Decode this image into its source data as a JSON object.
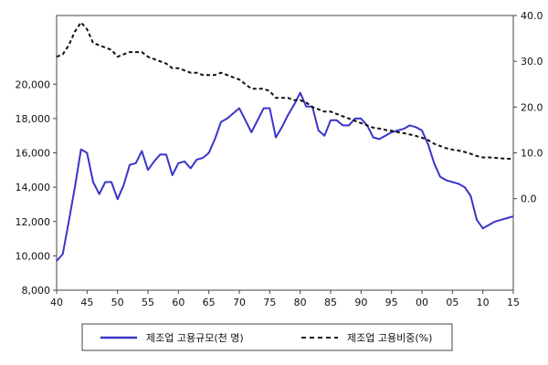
{
  "chart_data": {
    "type": "line",
    "x_ticks": [
      "40",
      "45",
      "50",
      "55",
      "60",
      "65",
      "70",
      "75",
      "80",
      "85",
      "90",
      "95",
      "00",
      "05",
      "10",
      "15"
    ],
    "x_range": [
      1940,
      2015
    ],
    "y_left": {
      "ticks": [
        "8,000",
        "10,000",
        "12,000",
        "14,000",
        "16,000",
        "18,000",
        "20,000"
      ],
      "range": [
        8000,
        24000
      ]
    },
    "y_right": {
      "ticks": [
        "0.0",
        "10.0",
        "20.0",
        "30.0",
        "40.0"
      ],
      "range": [
        -20,
        40
      ]
    },
    "grid": false,
    "legend_position": "bottom",
    "series": [
      {
        "name": "제조업 고용규모(천 명)",
        "axis": "left",
        "style": "solid",
        "color": "#3a35c8",
        "points": [
          [
            1940,
            9700
          ],
          [
            1941,
            10100
          ],
          [
            1942,
            12000
          ],
          [
            1943,
            14000
          ],
          [
            1944,
            16200
          ],
          [
            1945,
            16000
          ],
          [
            1946,
            14300
          ],
          [
            1947,
            13600
          ],
          [
            1948,
            14300
          ],
          [
            1949,
            14300
          ],
          [
            1950,
            13300
          ],
          [
            1951,
            14100
          ],
          [
            1952,
            15300
          ],
          [
            1953,
            15400
          ],
          [
            1954,
            16100
          ],
          [
            1955,
            15000
          ],
          [
            1956,
            15500
          ],
          [
            1957,
            15900
          ],
          [
            1958,
            15900
          ],
          [
            1959,
            14700
          ],
          [
            1960,
            15400
          ],
          [
            1961,
            15500
          ],
          [
            1962,
            15100
          ],
          [
            1963,
            15600
          ],
          [
            1964,
            15700
          ],
          [
            1965,
            16000
          ],
          [
            1966,
            16800
          ],
          [
            1967,
            17800
          ],
          [
            1968,
            18000
          ],
          [
            1969,
            18300
          ],
          [
            1970,
            18600
          ],
          [
            1971,
            17900
          ],
          [
            1972,
            17200
          ],
          [
            1973,
            17900
          ],
          [
            1974,
            18600
          ],
          [
            1975,
            18600
          ],
          [
            1976,
            16900
          ],
          [
            1977,
            17500
          ],
          [
            1978,
            18200
          ],
          [
            1979,
            18800
          ],
          [
            1980,
            19500
          ],
          [
            1981,
            18700
          ],
          [
            1982,
            18700
          ],
          [
            1983,
            17300
          ],
          [
            1984,
            17000
          ],
          [
            1985,
            17900
          ],
          [
            1986,
            17900
          ],
          [
            1987,
            17600
          ],
          [
            1988,
            17600
          ],
          [
            1989,
            18000
          ],
          [
            1990,
            18000
          ],
          [
            1991,
            17600
          ],
          [
            1992,
            16900
          ],
          [
            1993,
            16800
          ],
          [
            1994,
            17000
          ],
          [
            1995,
            17200
          ],
          [
            1996,
            17300
          ],
          [
            1997,
            17400
          ],
          [
            1998,
            17600
          ],
          [
            1999,
            17500
          ],
          [
            2000,
            17300
          ],
          [
            2001,
            16500
          ],
          [
            2002,
            15400
          ],
          [
            2003,
            14600
          ],
          [
            2004,
            14400
          ],
          [
            2005,
            14300
          ],
          [
            2006,
            14200
          ],
          [
            2007,
            14000
          ],
          [
            2008,
            13500
          ],
          [
            2009,
            12100
          ],
          [
            2010,
            11600
          ],
          [
            2011,
            11800
          ],
          [
            2012,
            12000
          ],
          [
            2013,
            12100
          ],
          [
            2014,
            12200
          ],
          [
            2015,
            12300
          ]
        ]
      },
      {
        "name": "제조업 고용비중(%)",
        "axis": "right",
        "style": "dashed",
        "color": "#111111",
        "points": [
          [
            1940,
            31
          ],
          [
            1941,
            31.5
          ],
          [
            1942,
            33.5
          ],
          [
            1943,
            36.5
          ],
          [
            1944,
            38.5
          ],
          [
            1945,
            37
          ],
          [
            1946,
            34
          ],
          [
            1947,
            33.5
          ],
          [
            1948,
            33
          ],
          [
            1949,
            32.5
          ],
          [
            1950,
            31
          ],
          [
            1951,
            31.5
          ],
          [
            1952,
            32
          ],
          [
            1953,
            32
          ],
          [
            1954,
            32
          ],
          [
            1955,
            31
          ],
          [
            1956,
            30.5
          ],
          [
            1957,
            30
          ],
          [
            1958,
            29.5
          ],
          [
            1959,
            28.5
          ],
          [
            1960,
            28.5
          ],
          [
            1961,
            28
          ],
          [
            1962,
            27.5
          ],
          [
            1963,
            27.5
          ],
          [
            1964,
            27
          ],
          [
            1965,
            27
          ],
          [
            1966,
            27
          ],
          [
            1967,
            27.5
          ],
          [
            1968,
            27
          ],
          [
            1969,
            26.5
          ],
          [
            1970,
            26
          ],
          [
            1971,
            25
          ],
          [
            1972,
            24
          ],
          [
            1973,
            24
          ],
          [
            1974,
            24
          ],
          [
            1975,
            23.5
          ],
          [
            1976,
            22
          ],
          [
            1977,
            22
          ],
          [
            1978,
            22
          ],
          [
            1979,
            21.5
          ],
          [
            1980,
            21.5
          ],
          [
            1981,
            21
          ],
          [
            1982,
            20
          ],
          [
            1983,
            19.5
          ],
          [
            1984,
            19
          ],
          [
            1985,
            19
          ],
          [
            1986,
            18.5
          ],
          [
            1987,
            18
          ],
          [
            1988,
            17.5
          ],
          [
            1989,
            17
          ],
          [
            1990,
            16.5
          ],
          [
            1991,
            16
          ],
          [
            1992,
            15.5
          ],
          [
            1993,
            15.3
          ],
          [
            1994,
            15
          ],
          [
            1995,
            14.8
          ],
          [
            1996,
            14.5
          ],
          [
            1997,
            14.3
          ],
          [
            1998,
            14
          ],
          [
            1999,
            13.7
          ],
          [
            2000,
            13.3
          ],
          [
            2001,
            12.8
          ],
          [
            2002,
            12
          ],
          [
            2003,
            11.5
          ],
          [
            2004,
            11
          ],
          [
            2005,
            10.7
          ],
          [
            2006,
            10.5
          ],
          [
            2007,
            10.2
          ],
          [
            2008,
            9.8
          ],
          [
            2009,
            9.3
          ],
          [
            2010,
            9
          ],
          [
            2011,
            9
          ],
          [
            2012,
            8.9
          ],
          [
            2013,
            8.8
          ],
          [
            2014,
            8.7
          ],
          [
            2015,
            8.7
          ]
        ]
      }
    ]
  }
}
